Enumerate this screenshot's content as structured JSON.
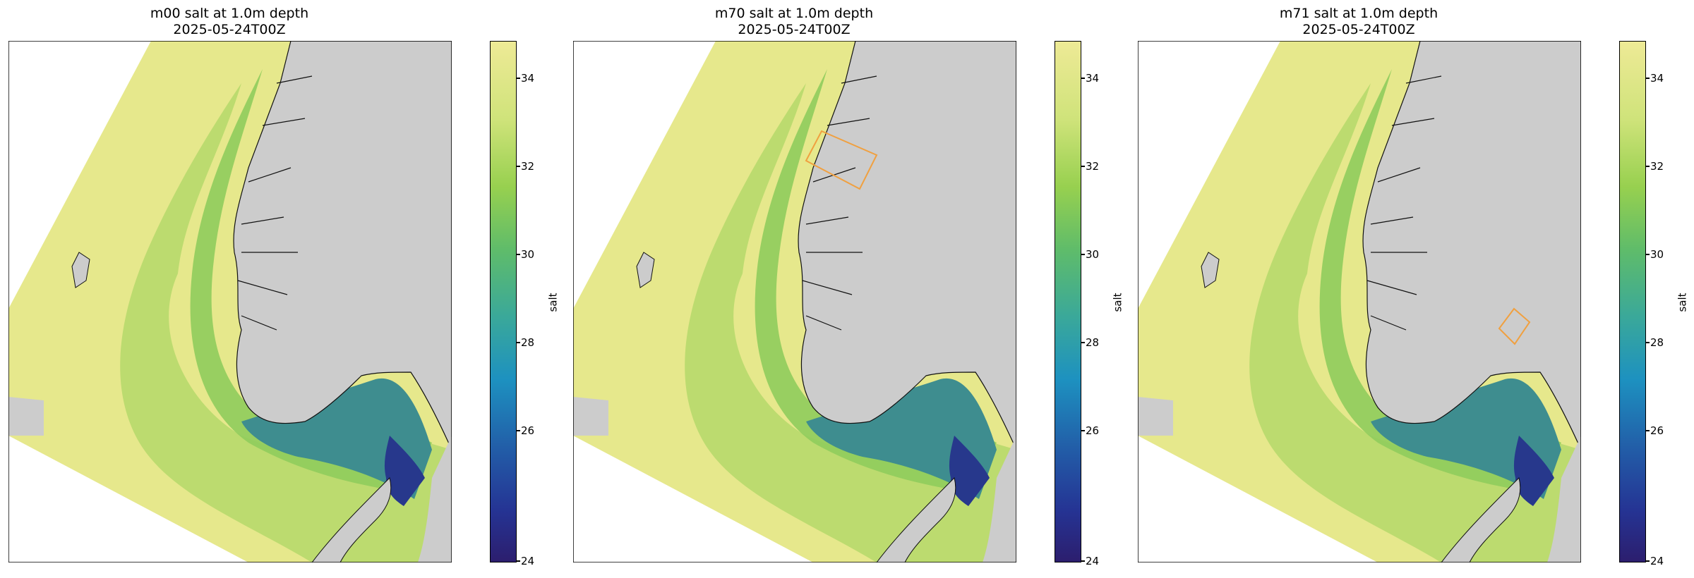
{
  "panels": [
    {
      "title": "m00 salt at 1.0m depth",
      "time": "2025-05-24T00Z"
    },
    {
      "title": "m70 salt at 1.0m depth",
      "time": "2025-05-24T00Z"
    },
    {
      "title": "m71 salt at 1.0m depth",
      "time": "2025-05-24T00Z"
    }
  ],
  "colorbar": {
    "label": "salt",
    "ticks": [
      "34",
      "32",
      "30",
      "28",
      "26",
      "24"
    ],
    "range": [
      24,
      35.8
    ],
    "colors": [
      "#2c1e6e",
      "#225ea8",
      "#1d91c0",
      "#3aa89a",
      "#5fbc6a",
      "#97d04f",
      "#cfe37a",
      "#eeea96"
    ]
  },
  "colors": {
    "open_sea": "#e6e88c",
    "shelf": "#b4d86a",
    "coastal": "#8fcc5c",
    "skagerrak": "#3e8d8f",
    "low_salinity": "#27388c",
    "land": "#cccccc",
    "highlight_box": "#f0a040"
  }
}
